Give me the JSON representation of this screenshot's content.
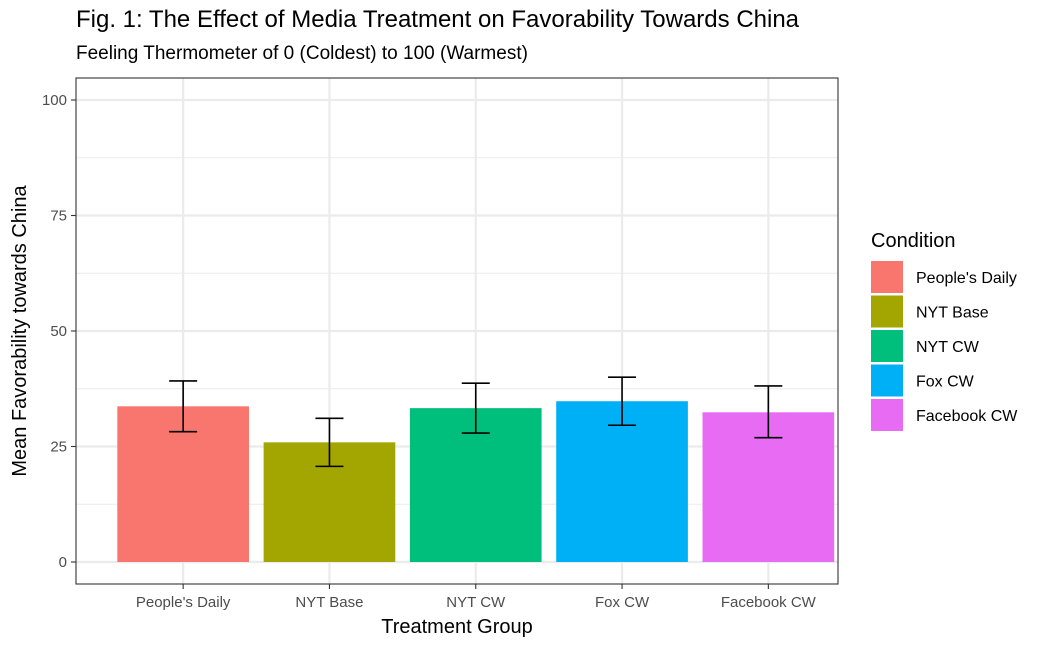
{
  "chart_data": {
    "type": "bar",
    "title": "Fig. 1: The Effect of Media Treatment on Favorability Towards China",
    "subtitle": "Feeling Thermometer of 0 (Coldest) to 100 (Warmest)",
    "xlabel": "Treatment Group",
    "ylabel": "Mean Favorability towards China",
    "categories": [
      "People's Daily",
      "NYT Base",
      "NYT CW",
      "Fox CW",
      "Facebook CW"
    ],
    "values": [
      33.7,
      25.9,
      33.3,
      34.8,
      32.4
    ],
    "error_lower": [
      28.2,
      20.7,
      27.9,
      29.6,
      26.9
    ],
    "error_upper": [
      39.2,
      31.1,
      38.7,
      40.0,
      38.1
    ],
    "colors": [
      "#F8766D",
      "#A3A500",
      "#00BF7D",
      "#00B0F6",
      "#E76BF3"
    ],
    "ylim": [
      0,
      100
    ],
    "yticks": [
      0,
      25,
      50,
      75,
      100
    ],
    "grid": true,
    "legend": {
      "title": "Condition",
      "position": "right",
      "entries": [
        "People's Daily",
        "NYT Base",
        "NYT CW",
        "Fox CW",
        "Facebook CW"
      ]
    }
  }
}
